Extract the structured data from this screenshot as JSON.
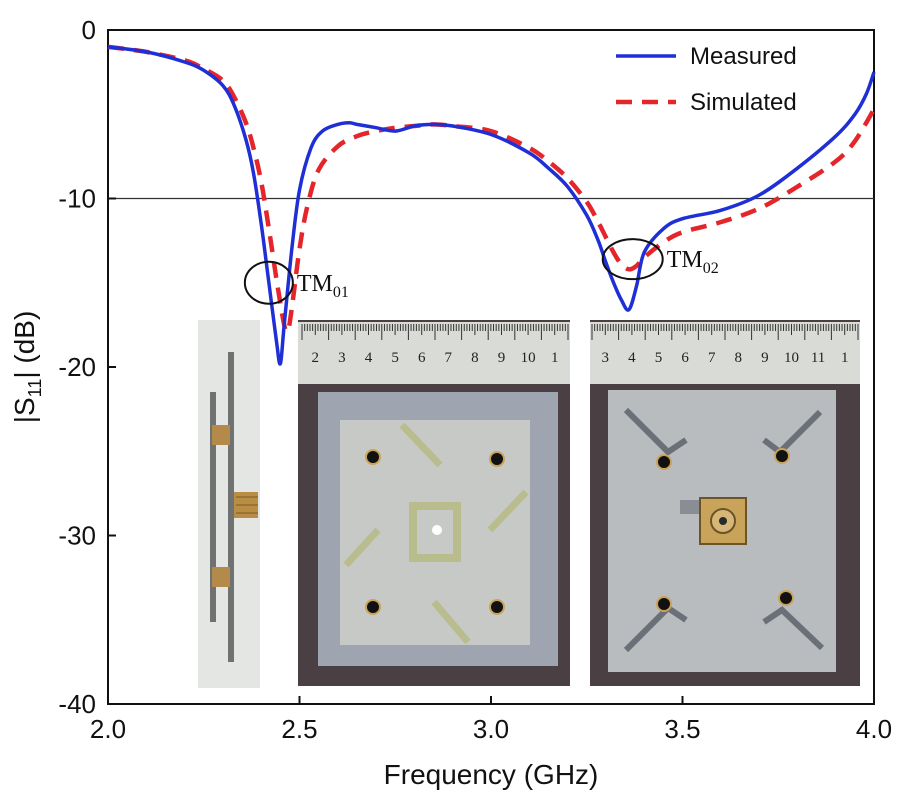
{
  "chart_data": {
    "type": "line",
    "title": "",
    "xlabel": "Frequency (GHz)",
    "ylabel": "|S11| (dB)",
    "ylabel_main": "|S",
    "ylabel_sub": "11",
    "ylabel_tail": "| (dB)",
    "xlim": [
      2.0,
      4.0
    ],
    "ylim": [
      -40,
      0
    ],
    "x_ticks": [
      2.0,
      2.5,
      3.0,
      3.5,
      4.0
    ],
    "x_tick_labels": [
      "2.0",
      "2.5",
      "3.0",
      "3.5",
      "4.0"
    ],
    "y_ticks": [
      0,
      -10,
      -20,
      -30,
      -40
    ],
    "y_tick_labels": [
      "0",
      "-10",
      "-20",
      "-30",
      "-40"
    ],
    "reference_line": -10,
    "legend_position": "top-right",
    "series": [
      {
        "name": "Measured",
        "color": "#1f2fd6",
        "style": "solid",
        "x": [
          2.0,
          2.1,
          2.2,
          2.25,
          2.3,
          2.33,
          2.36,
          2.38,
          2.4,
          2.42,
          2.44,
          2.45,
          2.46,
          2.48,
          2.5,
          2.53,
          2.56,
          2.6,
          2.63,
          2.65,
          2.7,
          2.75,
          2.8,
          2.85,
          2.9,
          3.0,
          3.1,
          3.15,
          3.2,
          3.25,
          3.28,
          3.3,
          3.32,
          3.34,
          3.36,
          3.38,
          3.4,
          3.45,
          3.5,
          3.6,
          3.7,
          3.8,
          3.9,
          3.95,
          3.98,
          4.0
        ],
        "y": [
          -1.0,
          -1.3,
          -1.9,
          -2.4,
          -3.3,
          -4.5,
          -6.5,
          -8.5,
          -11.5,
          -15.0,
          -18.5,
          -19.8,
          -17.5,
          -13.0,
          -9.5,
          -7.0,
          -6.0,
          -5.6,
          -5.5,
          -5.6,
          -5.8,
          -6.0,
          -5.7,
          -5.6,
          -5.7,
          -6.2,
          -7.3,
          -8.2,
          -9.3,
          -11.0,
          -12.5,
          -13.8,
          -15.0,
          -16.0,
          -16.6,
          -15.2,
          -13.2,
          -11.8,
          -11.2,
          -10.7,
          -9.8,
          -8.2,
          -6.3,
          -5.0,
          -3.8,
          -2.5
        ]
      },
      {
        "name": "Simulated",
        "color": "#e4262b",
        "style": "dashed",
        "x": [
          2.0,
          2.1,
          2.2,
          2.25,
          2.3,
          2.33,
          2.36,
          2.38,
          2.4,
          2.42,
          2.44,
          2.46,
          2.47,
          2.48,
          2.5,
          2.52,
          2.55,
          2.6,
          2.65,
          2.7,
          2.75,
          2.8,
          2.85,
          2.9,
          3.0,
          3.1,
          3.15,
          3.2,
          3.25,
          3.28,
          3.3,
          3.32,
          3.34,
          3.36,
          3.38,
          3.4,
          3.45,
          3.5,
          3.6,
          3.7,
          3.8,
          3.9,
          3.95,
          4.0
        ],
        "y": [
          -1.0,
          -1.3,
          -1.8,
          -2.3,
          -3.0,
          -4.0,
          -5.5,
          -7.0,
          -9.0,
          -11.8,
          -14.8,
          -17.5,
          -17.8,
          -16.5,
          -13.0,
          -10.5,
          -8.3,
          -6.9,
          -6.3,
          -6.0,
          -5.8,
          -5.7,
          -5.6,
          -5.7,
          -6.0,
          -7.0,
          -7.8,
          -8.8,
          -10.2,
          -11.4,
          -12.3,
          -13.2,
          -13.9,
          -14.2,
          -14.0,
          -13.5,
          -12.6,
          -12.0,
          -11.4,
          -10.6,
          -9.3,
          -7.8,
          -6.6,
          -4.7
        ]
      }
    ],
    "annotations": [
      {
        "label": "TM",
        "sub": "01",
        "x": 2.42,
        "y": -15.0
      },
      {
        "label": "TM",
        "sub": "02",
        "x": 3.37,
        "y": -13.6
      }
    ],
    "inset_photos": [
      "side view of fabricated antenna",
      "top view with ruler",
      "bottom view with ruler"
    ],
    "ruler_top_numbers": [
      "2",
      "3",
      "4",
      "5",
      "6",
      "7",
      "8",
      "9",
      "10",
      "1"
    ],
    "ruler_bottom_numbers": [
      "3",
      "4",
      "5",
      "6",
      "7",
      "8",
      "9",
      "10",
      "11",
      "1"
    ]
  }
}
